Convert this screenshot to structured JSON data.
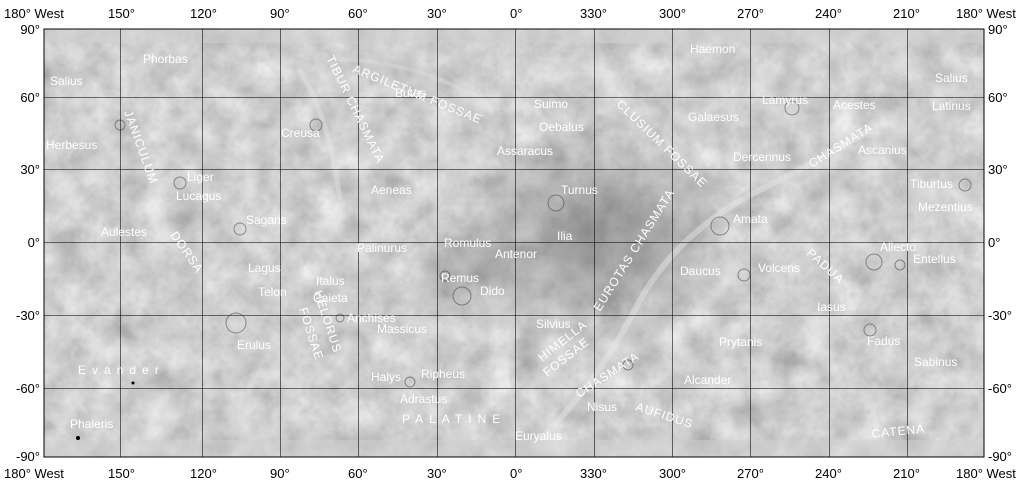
{
  "map": {
    "top_longitude_labels": [
      "180° West",
      "150°",
      "120°",
      "90°",
      "60°",
      "30°",
      "0°",
      "330°",
      "300°",
      "270°",
      "240°",
      "210°",
      "180° West"
    ],
    "bottom_longitude_labels": [
      "180° West",
      "150°",
      "120°",
      "90°",
      "60°",
      "30°",
      "0°",
      "330°",
      "300°",
      "270°",
      "240°",
      "210°",
      "180° West"
    ],
    "latitude_labels": [
      "90°",
      "60°",
      "30°",
      "0°",
      "-30°",
      "-60°",
      "-90°"
    ],
    "features": {
      "salius_w": "Salius",
      "phorbas": "Phorbas",
      "argiletum": "ARGILETUM FOSSAE",
      "butes": "Butes",
      "tibur": "TIBUR CHASMATA",
      "haemon": "Haemon",
      "salius_e": "Salius",
      "suimo": "Suimo",
      "clusium": "CLUSIUM FOSSAE",
      "lamyrus": "Lamyrus",
      "acestes": "Acestes",
      "latinus": "Latinus",
      "janiculum": "JANICULUM",
      "creusa": "Creusa",
      "oebalus": "Oebalus",
      "galaesus": "Galaesus",
      "chasmata_ne": "CHASMATA",
      "herbesus": "Herbesus",
      "assaracus": "Assaracus",
      "dercennus": "Dercennus",
      "ascanius": "Ascanius",
      "liger": "Liger",
      "lucagus": "Lucagus",
      "aeneas": "Aeneas",
      "turnus": "Turnus",
      "tiburtus": "Tiburtus",
      "sagaris": "Sagaris",
      "amata": "Amata",
      "mezentius": "Mezentius",
      "aulestes": "Aulestes",
      "dorsa": "DORSA",
      "ilia": "Ilia",
      "eurotas": "EUROTAS CHASMATA",
      "palinurus": "Palinurus",
      "romulus": "Romulus",
      "antenor": "Antenor",
      "allecto": "Allecto",
      "entellus": "Entellus",
      "padua": "PADUA",
      "lagus": "Lagus",
      "italus": "Italus",
      "remus": "Remus",
      "dido": "Dido",
      "daucus": "Daucus",
      "volcens": "Volcens",
      "telon": "Telon",
      "caieta": "Caieta",
      "iasus": "Iasus",
      "anchises": "Anchises",
      "massicus": "Massicus",
      "helorus": "HELORUS",
      "fossae_h": "FOSSAE",
      "silvius": "Silvius",
      "himella": "HIMELLA",
      "fossae_him": "FOSSAE",
      "erulus": "Erulus",
      "prytanis": "Prytanis",
      "fadus": "Fadus",
      "evander": "Evander",
      "halys": "Halys",
      "ripheus": "Ripheus",
      "chasmata_s": "CHASMATA",
      "alcander": "Alcander",
      "sabinus": "Sabinus",
      "adrastus": "Adrastus",
      "nisus": "Nisus",
      "palatine": "PALATINE",
      "aufidus": "AUFIDUS",
      "phaleris": "Phaleris",
      "euryalus": "Euryalus",
      "catena": "CATENA"
    }
  }
}
